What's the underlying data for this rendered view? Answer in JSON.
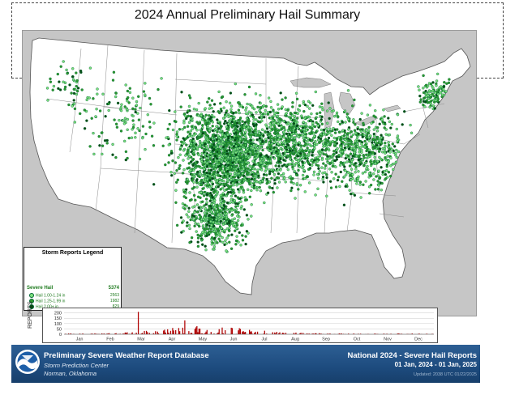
{
  "title": "2024 Annual Preliminary Hail Summary",
  "legend": {
    "title": "Storm Reports Legend",
    "total_label": "Severe Hail",
    "total_value": "5374",
    "rows": [
      {
        "label": "Hail 1.00-1.24 in",
        "value": "2563",
        "color": "#7de07d"
      },
      {
        "label": "Hail 1.25-1.99 in",
        "value": "1982",
        "color": "#2e9a2e"
      },
      {
        "label": "Hail 2.00+ in",
        "value": "829",
        "color": "#0a4a12"
      }
    ]
  },
  "histogram": {
    "ylabel": "REPORTS",
    "y_ticks": [
      "200",
      "150",
      "100",
      "50",
      "0"
    ],
    "ymax": 220,
    "months": [
      "Jan",
      "Feb",
      "Mar",
      "Apr",
      "May",
      "Jun",
      "Jul",
      "Aug",
      "Sep",
      "Oct",
      "Nov",
      "Dec"
    ],
    "bar_color": "#b00000"
  },
  "footer": {
    "db_title": "Preliminary Severe Weather Report Database",
    "sub1": "Storm Prediction Center",
    "sub2": "Norman, Oklahoma",
    "report_title": "National  2024 - Severe Hail Reports",
    "date_range": "01 Jan, 2024 - 01 Jan, 2025",
    "updated": "Updated: 2038 UTC 01/22/2025"
  },
  "colors": {
    "land": "#ffffff",
    "water": "#c6c6c6",
    "state_lines": "#8a8a8a",
    "marker_light": "#7de07d",
    "marker_mid": "#2e9a2e",
    "marker_dark": "#0a4a12",
    "footer_bg": "#1d4b7e"
  }
}
